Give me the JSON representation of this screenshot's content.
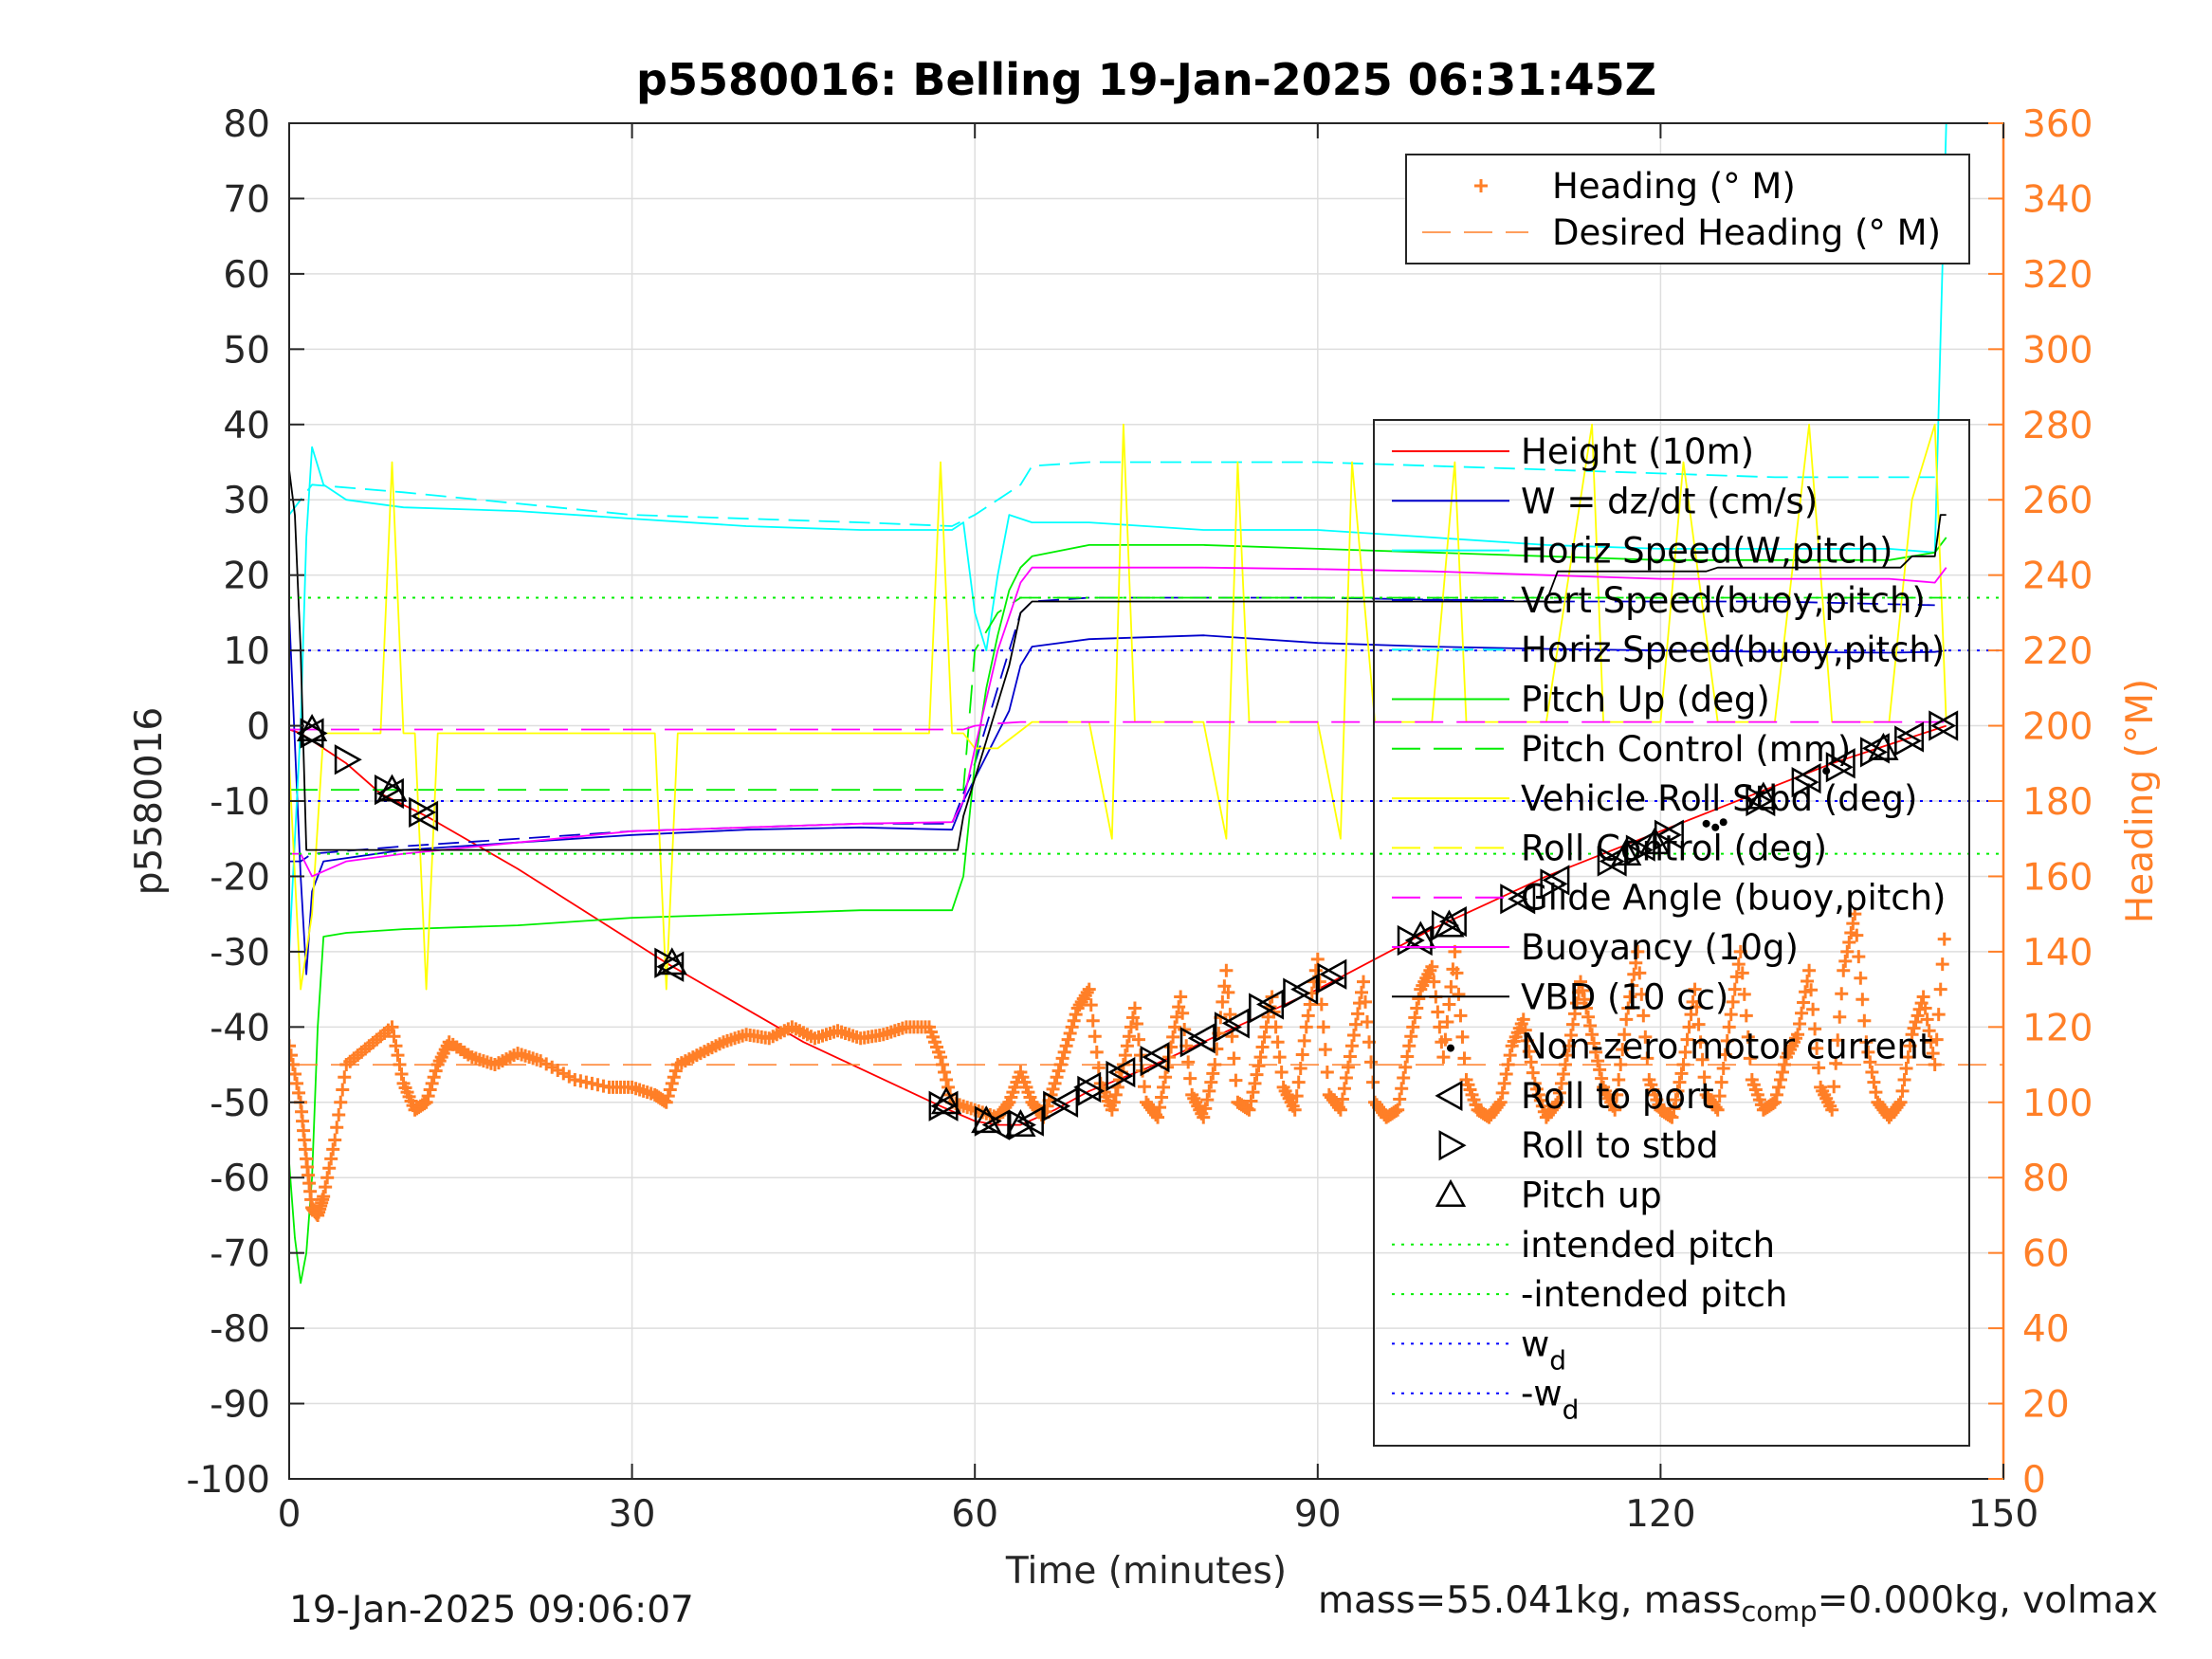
{
  "chart_data": {
    "type": "line",
    "title": "p5580016: Belling 19-Jan-2025 06:31:45Z",
    "xlabel": "Time (minutes)",
    "ylabel_left": "p5580016",
    "ylabel_right": "Heading (°M)",
    "xlim": [
      0,
      150
    ],
    "ylim_left": [
      -100,
      80
    ],
    "ylim_right": [
      0,
      360
    ],
    "xticks": [
      0,
      30,
      60,
      90,
      120,
      150
    ],
    "yticks_left": [
      80,
      70,
      60,
      50,
      40,
      30,
      20,
      10,
      0,
      -10,
      -20,
      -30,
      -40,
      -50,
      -60,
      -70,
      -80,
      -90,
      -100
    ],
    "yticks_right": [
      360,
      340,
      320,
      300,
      280,
      260,
      240,
      220,
      200,
      180,
      160,
      140,
      120,
      100,
      80,
      60,
      40,
      20,
      0
    ],
    "grid": true,
    "colors": {
      "axis": "#262626",
      "grid": "#dedede",
      "heading": "#ff7f27",
      "height": "#ff0000",
      "w": "#0000cc",
      "horiz_speed": "#00ffff",
      "pitch": "#00ee00",
      "roll": "#ffff00",
      "glide": "#ff00ff",
      "vbd": "#000000",
      "wd": "#0000ff"
    },
    "legend_top": {
      "placement": "top-right",
      "entries": [
        "Heading (° M)",
        "Desired Heading (° M)"
      ]
    },
    "legend_main": {
      "placement": "right",
      "entries": [
        "Height (10m)",
        "W = dz/dt (cm/s)",
        "Horiz Speed(W,pitch)",
        "Vert Speed(buoy,pitch)",
        "Horiz Speed(buoy,pitch)",
        "Pitch Up (deg)",
        "Pitch Control (mm)",
        "Vehicle Roll Stbd (deg)",
        "Roll Control (deg)",
        "Glide Angle (buoy,pitch)",
        "Buoyancy (10g)",
        "VBD (10 cc)",
        "Non-zero motor current",
        "Roll to port",
        "Roll to stbd",
        "Pitch up",
        "intended pitch",
        "-intended pitch",
        "w",
        "-w"
      ],
      "subscripts": {
        "18": "d",
        "19": "d"
      }
    },
    "series": [
      {
        "name": "Height (10m)",
        "axis": "left",
        "x": [
          0,
          1,
          2,
          5,
          8,
          12,
          20,
          33,
          45,
          57,
          60,
          62,
          64,
          67,
          70,
          75,
          80,
          85,
          90,
          95,
          100,
          105,
          110,
          115,
          120,
          125,
          130,
          135,
          140,
          145
        ],
        "y": [
          -0.5,
          -1,
          -2,
          -5,
          -9,
          -12,
          -19,
          -31.5,
          -42,
          -50.5,
          -52.5,
          -53,
          -53,
          -51,
          -48.5,
          -45.5,
          -42,
          -38.5,
          -35,
          -31,
          -27,
          -23.5,
          -20,
          -17,
          -14,
          -11,
          -8,
          -5,
          -2.5,
          0
        ]
      },
      {
        "name": "W = dz/dt (cm/s)",
        "axis": "left",
        "x": [
          0,
          1,
          1.5,
          2,
          3,
          10,
          20,
          30,
          40,
          50,
          58,
          59,
          61,
          63,
          64,
          65,
          70,
          80,
          90,
          100,
          110,
          120,
          130,
          140,
          144,
          145
        ],
        "y": [
          15,
          -20,
          -33,
          -22,
          -18,
          -16.5,
          -15.5,
          -14.5,
          -13.8,
          -13.5,
          -13.8,
          -10,
          -4,
          2,
          8,
          10.5,
          11.5,
          12,
          11,
          10.5,
          10.2,
          10,
          9.8,
          9.7,
          9.8,
          10
        ]
      },
      {
        "name": "Horiz Speed(W,pitch)",
        "axis": "left",
        "x": [
          0,
          1,
          1.5,
          2,
          3,
          5,
          10,
          20,
          30,
          40,
          50,
          58,
          59,
          60,
          61,
          62,
          63,
          65,
          70,
          80,
          90,
          100,
          110,
          120,
          130,
          140,
          144,
          145
        ],
        "y": [
          -30,
          0,
          25,
          37,
          32,
          30,
          29,
          28.5,
          27.5,
          26.5,
          26,
          26,
          27,
          15,
          10,
          20,
          28,
          27,
          27,
          26,
          26,
          25,
          24,
          23.5,
          23.5,
          23.5,
          23,
          80
        ]
      },
      {
        "name": "Vert Speed(buoy,pitch)",
        "axis": "left",
        "x": [
          0,
          1,
          2,
          10,
          30,
          50,
          58,
          60,
          62,
          64,
          65,
          70,
          90,
          110,
          130,
          144
        ],
        "y": [
          -18,
          -18,
          -17,
          -16,
          -14,
          -13,
          -13,
          -5,
          5,
          15,
          16.5,
          17,
          17,
          16.5,
          16.5,
          16
        ]
      },
      {
        "name": "Horiz Speed(buoy,pitch)",
        "axis": "left",
        "x": [
          0,
          2,
          10,
          30,
          50,
          58,
          60,
          62,
          64,
          65,
          70,
          90,
          110,
          130,
          144
        ],
        "y": [
          28,
          32,
          31,
          28,
          27,
          26.5,
          28,
          30,
          32,
          34.5,
          35,
          35,
          34,
          33,
          33
        ]
      },
      {
        "name": "Pitch Up (deg)",
        "axis": "left",
        "x": [
          0,
          0.5,
          1,
          1.5,
          2,
          2.5,
          3,
          5,
          10,
          20,
          30,
          40,
          50,
          58,
          59,
          60,
          61,
          62,
          63,
          64,
          65,
          70,
          80,
          90,
          100,
          110,
          120,
          130,
          140,
          144,
          145
        ],
        "y": [
          -58,
          -68,
          -74,
          -70,
          -60,
          -40,
          -28,
          -27.5,
          -27,
          -26.5,
          -25.5,
          -25,
          -24.5,
          -24.5,
          -20,
          -5,
          5,
          12,
          18,
          21,
          22.5,
          24,
          24,
          23.5,
          23,
          22.5,
          22,
          22,
          22,
          23,
          25
        ]
      },
      {
        "name": "Pitch Control (mm)",
        "axis": "left",
        "x": [
          0,
          2,
          3,
          58,
          59,
          60,
          62,
          64,
          145
        ],
        "y": [
          -8.5,
          -8.5,
          -8.5,
          -8.5,
          -8.5,
          10,
          15,
          17,
          17
        ]
      },
      {
        "name": "Vehicle Roll Stbd (deg)",
        "axis": "left",
        "x": [
          0,
          1,
          2,
          3,
          8,
          9,
          10,
          11,
          12,
          13,
          20,
          32,
          33,
          34,
          50,
          56,
          57,
          58,
          59,
          60,
          62,
          65,
          70,
          72,
          73,
          74,
          80,
          82,
          83,
          84,
          90,
          92,
          93,
          95,
          100,
          102,
          103,
          110,
          114,
          115,
          120,
          122,
          125,
          130,
          133,
          135,
          140,
          142,
          144,
          145
        ],
        "y": [
          -5,
          -35,
          -25,
          -1,
          -1,
          35,
          -1,
          -1,
          -35,
          -1,
          -1,
          -1,
          -35,
          -1,
          -1,
          -1,
          35,
          -1,
          -1,
          -3,
          -3,
          0.5,
          0.5,
          -15,
          40,
          0.5,
          0.5,
          -15,
          35,
          0.5,
          0.5,
          -15,
          35,
          0.5,
          0.5,
          35,
          0.5,
          0.5,
          40,
          0.5,
          0.5,
          35,
          0.5,
          0.5,
          40,
          0.5,
          0.5,
          30,
          40,
          0.5
        ]
      },
      {
        "name": "Glide Angle (buoy,pitch)",
        "axis": "left",
        "x": [
          0,
          1,
          2,
          10,
          30,
          50,
          58,
          59,
          60,
          62,
          64,
          65,
          70,
          90,
          110,
          130,
          144,
          145
        ],
        "y": [
          -0.5,
          -0.5,
          -0.5,
          -0.5,
          -0.5,
          -0.5,
          -0.5,
          -0.5,
          0,
          0.3,
          0.5,
          0.5,
          0.5,
          0.5,
          0.5,
          0.5,
          0.5,
          0.5
        ]
      },
      {
        "name": "Buoyancy (10g)",
        "axis": "left",
        "x": [
          0,
          1,
          2,
          5,
          10,
          20,
          30,
          40,
          50,
          58,
          59,
          60,
          62,
          64,
          65,
          70,
          80,
          90,
          100,
          110,
          120,
          130,
          140,
          144,
          145
        ],
        "y": [
          -17,
          -17,
          -20,
          -18,
          -17,
          -15.5,
          -14,
          -13.5,
          -13,
          -12.8,
          -10,
          -3,
          10,
          19,
          21,
          21,
          21,
          20.8,
          20.5,
          20,
          19.5,
          19.5,
          19.5,
          19,
          21
        ]
      },
      {
        "name": "VBD (10 cc)",
        "axis": "left",
        "x": [
          0,
          0.5,
          1,
          1.5,
          2,
          58.5,
          59,
          61,
          63,
          64,
          65,
          110,
          111,
          124,
          125,
          141,
          142,
          144,
          144.5,
          145
        ],
        "y": [
          34,
          28,
          10,
          -16.5,
          -16.5,
          -16.5,
          -12,
          -2,
          8,
          15,
          16.5,
          16.5,
          20.5,
          20.5,
          21,
          21,
          22.5,
          22.5,
          28,
          28
        ]
      },
      {
        "name": "Heading (° M)",
        "axis": "right",
        "x": [
          0,
          1,
          1.5,
          2,
          2.5,
          3,
          4,
          5,
          7,
          9,
          10,
          11,
          12,
          13,
          14,
          16,
          18,
          20,
          22,
          25,
          28,
          30,
          32,
          33,
          34,
          36,
          38,
          40,
          42,
          44,
          46,
          48,
          50,
          52,
          54,
          56,
          57,
          58,
          60,
          62,
          63,
          64,
          65,
          66,
          67,
          68,
          69,
          70,
          71,
          72,
          73,
          74,
          75,
          76,
          77,
          78,
          79,
          80,
          81,
          82,
          83,
          84,
          85,
          86,
          87,
          88,
          89,
          90,
          91,
          92,
          93,
          94,
          95,
          96,
          97,
          98,
          99,
          100,
          101,
          102,
          103,
          104,
          105,
          106,
          107,
          108,
          109,
          110,
          111,
          112,
          113,
          114,
          115,
          116,
          117,
          118,
          119,
          120,
          121,
          122,
          123,
          124,
          125,
          126,
          127,
          128,
          129,
          130,
          131,
          132,
          133,
          134,
          135,
          136,
          137,
          138,
          139,
          140,
          141,
          142,
          143,
          144,
          145
        ],
        "y": [
          115,
          100,
          85,
          72,
          70,
          75,
          90,
          110,
          115,
          120,
          105,
          98,
          100,
          110,
          116,
          112,
          110,
          113,
          111,
          106,
          104,
          104,
          102,
          100,
          110,
          113,
          116,
          118,
          117,
          120,
          117,
          119,
          117,
          118,
          120,
          120,
          112,
          100,
          98,
          96,
          100,
          108,
          100,
          96,
          105,
          115,
          125,
          130,
          105,
          98,
          110,
          125,
          100,
          96,
          112,
          128,
          102,
          96,
          110,
          135,
          100,
          98,
          112,
          128,
          104,
          98,
          120,
          138,
          102,
          98,
          115,
          132,
          100,
          96,
          98,
          115,
          130,
          136,
          112,
          140,
          106,
          98,
          96,
          100,
          115,
          122,
          105,
          96,
          100,
          115,
          132,
          118,
          104,
          98,
          122,
          140,
          106,
          98,
          96,
          110,
          130,
          102,
          98,
          120,
          140,
          106,
          98,
          100,
          112,
          118,
          135,
          104,
          98,
          135,
          150,
          116,
          100,
          96,
          100,
          118,
          128,
          110,
          150
        ]
      },
      {
        "name": "Desired Heading (° M)",
        "axis": "right",
        "x": [
          0,
          150
        ],
        "y": [
          110,
          110
        ]
      },
      {
        "name": "intended pitch",
        "axis": "left",
        "x": [
          0,
          150
        ],
        "y": [
          17,
          17
        ]
      },
      {
        "name": "-intended pitch",
        "axis": "left",
        "x": [
          0,
          150
        ],
        "y": [
          -17,
          -17
        ]
      },
      {
        "name": "w",
        "axis": "left",
        "x": [
          0,
          150
        ],
        "y": [
          10,
          10
        ]
      },
      {
        "name": "-w",
        "axis": "left",
        "x": [
          0,
          150
        ],
        "y": [
          -10,
          -10
        ]
      }
    ],
    "markers": {
      "roll_to_port": {
        "x": [
          2,
          9,
          12,
          33.5,
          57.5,
          62,
          65,
          68,
          70,
          73,
          76,
          80,
          83,
          86,
          89,
          91.5,
          99,
          102,
          108,
          111,
          116,
          118.5,
          121,
          129,
          133,
          136,
          139,
          142,
          145
        ],
        "y": [
          -1,
          -9,
          -12,
          -32,
          -50.5,
          -53,
          -52.5,
          -50,
          -48,
          -46,
          -44,
          -41.5,
          -39.5,
          -37,
          -35,
          -33,
          -28.5,
          -26,
          -23,
          -20.5,
          -18,
          -16,
          -14.5,
          -10,
          -7,
          -5,
          -3,
          -1.5,
          0
        ]
      },
      "roll_to_stbd": {
        "x": [
          2,
          5,
          8.5,
          11.5,
          33,
          57,
          61,
          64,
          67,
          70,
          72.5,
          75.5,
          79,
          82,
          85,
          88,
          91,
          98,
          101,
          107,
          110.5,
          115.5,
          118,
          120.5,
          128.5,
          132.5,
          135.5,
          138.5,
          141.5,
          144.5
        ],
        "y": [
          -1,
          -4.5,
          -8.5,
          -11.5,
          -31.5,
          -50.5,
          -52.5,
          -53,
          -50.5,
          -48.5,
          -46.5,
          -44.5,
          -42,
          -40,
          -37.5,
          -35.5,
          -33.5,
          -28.5,
          -26.5,
          -23,
          -21,
          -18,
          -16.5,
          -14.5,
          -10,
          -7.5,
          -5.5,
          -3.5,
          -2,
          0
        ]
      },
      "pitch_up": {
        "x": [
          2,
          9,
          33.5,
          57.5,
          61,
          64,
          99,
          101.5,
          117,
          119.5,
          129,
          139.5
        ],
        "y": [
          -0.5,
          -8.5,
          -31.5,
          -50,
          -52.5,
          -53,
          -28,
          -26.5,
          -17,
          -15.5,
          -9.5,
          -3
        ]
      },
      "motor_current": {
        "x": [
          124,
          124.8,
          125.5,
          134.5
        ],
        "y": [
          -13,
          -13.5,
          -12.8,
          -6
        ]
      }
    }
  },
  "footer": {
    "timestamp": "19-Jan-2025 09:06:07",
    "mass_text_pre": "mass=55.041kg, mass",
    "mass_text_sub": "comp",
    "mass_text_post": "=0.000kg, volmax"
  }
}
